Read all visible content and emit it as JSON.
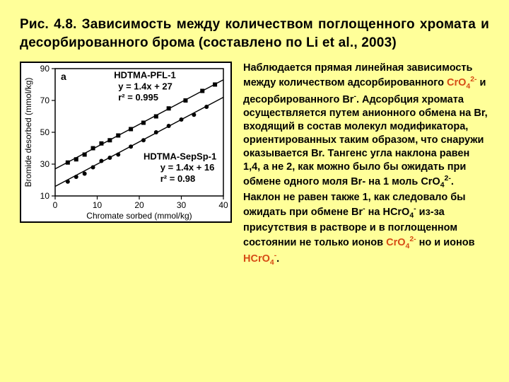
{
  "title": "Рис. 4.8. Зависимость между количеством поглощенного хромата и десорбированного брома (составлено по Li et al., 2003)",
  "body": {
    "p1a": "Наблюдается прямая линейная зависимость между количеством адсорбированного ",
    "c1": "CrO",
    "p1b": " и десорбированного Br",
    "p1c": ". Адсорбция хромата осуществляется путем анионного обмена на Br, входящий в состав молекул модификатора, ориентированных таким образом, что снаружи оказывается Br. Тангенс угла наклона равен 1,4, а не 2, как можно было бы ожидать при обмене одного моля Br- на 1 моль CrO",
    "p1d": ". Наклон не равен также 1, как следовало бы ожидать при обмене Br",
    "p1e": " на HCrO",
    "p1f": " из-за присутствия в растворе и в поглощенном состоянии не только ионов ",
    "c2": "CrO",
    "p1g": " но и ионов ",
    "c3": "HCrO",
    "p1h": "."
  },
  "chart": {
    "panel_label": "a",
    "xlabel": "Chromate sorbed (mmol/kg)",
    "ylabel": "Bromide desorbed (mmol/kg)",
    "xlim": [
      0,
      40
    ],
    "ylim": [
      10,
      90
    ],
    "xticks": [
      0,
      10,
      20,
      30,
      40
    ],
    "yticks": [
      10,
      30,
      50,
      70,
      90
    ],
    "background": "#ffffff",
    "axis_color": "#000000",
    "series": [
      {
        "name": "HDTMA-PFL-1",
        "marker": "square",
        "color": "#000000",
        "size": 6,
        "fit_label": "HDTMA-PFL-1",
        "fit_eq": "y = 1.4x + 27",
        "fit_r2": "r² = 0.995",
        "slope": 1.4,
        "intercept": 27,
        "x": [
          3,
          5,
          7,
          9,
          11,
          13,
          15,
          18,
          21,
          24,
          27,
          31,
          35,
          38
        ],
        "y": [
          31,
          33,
          36,
          40,
          43,
          45,
          48,
          52,
          56,
          60,
          65,
          70,
          76,
          80
        ]
      },
      {
        "name": "HDTMA-SepSp-1",
        "marker": "circle",
        "color": "#000000",
        "size": 5,
        "fit_label": "HDTMA-SepSp-1",
        "fit_eq": "y = 1.4x + 16",
        "fit_r2": "r² = 0.98",
        "slope": 1.4,
        "intercept": 16,
        "x": [
          3,
          5,
          7,
          9,
          11,
          13,
          15,
          18,
          21,
          24,
          27,
          30,
          33,
          36
        ],
        "y": [
          19,
          22,
          24,
          28,
          32,
          34,
          36,
          41,
          45,
          50,
          54,
          58,
          61,
          66
        ]
      }
    ]
  }
}
